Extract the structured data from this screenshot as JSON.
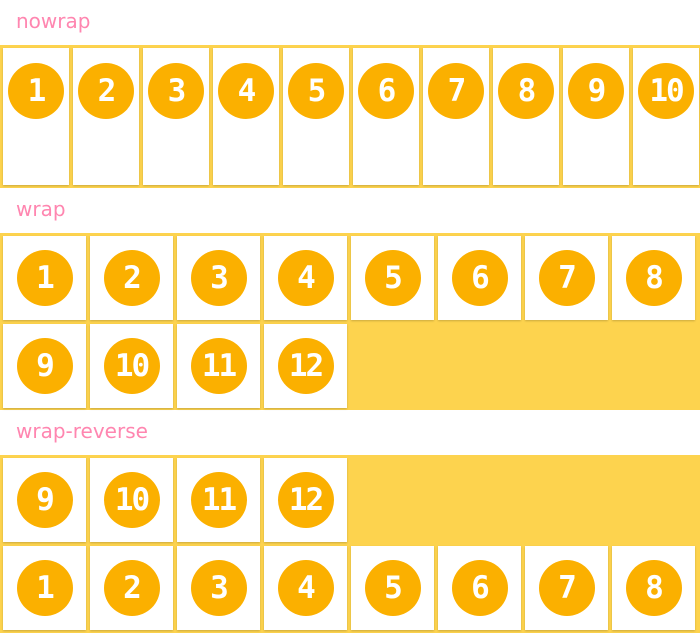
{
  "sections": [
    {
      "label": "nowrap",
      "items": [
        "1",
        "2",
        "3",
        "4",
        "5",
        "6",
        "7",
        "8",
        "9",
        "10"
      ]
    },
    {
      "label": "wrap",
      "items": [
        "1",
        "2",
        "3",
        "4",
        "5",
        "6",
        "7",
        "8",
        "9",
        "10",
        "11",
        "12"
      ]
    },
    {
      "label": "wrap-reverse",
      "items": [
        "1",
        "2",
        "3",
        "4",
        "5",
        "6",
        "7",
        "8",
        "9",
        "10",
        "11",
        "12"
      ]
    }
  ],
  "colors": {
    "container": "#fdd34e",
    "circle": "#fbb000",
    "label": "#ff86b0"
  }
}
